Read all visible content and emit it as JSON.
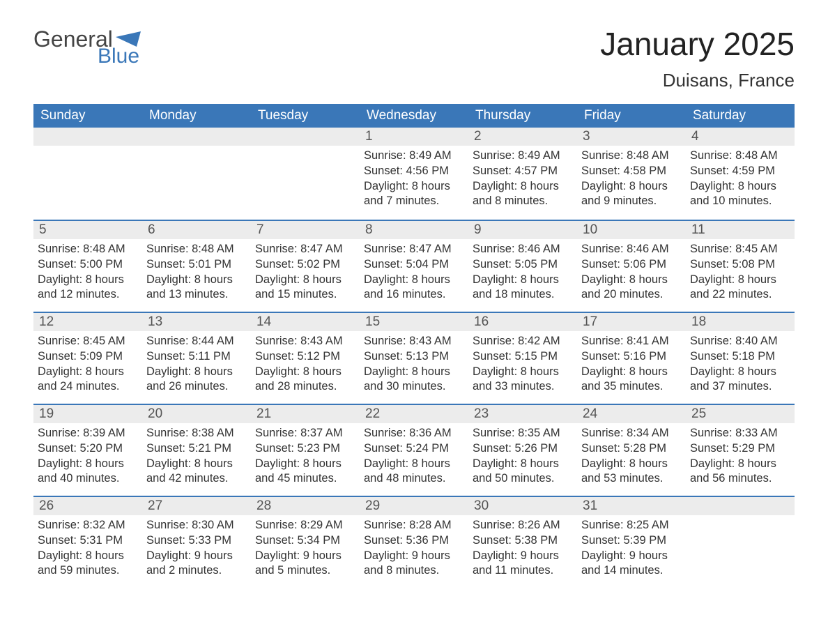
{
  "brand": {
    "general": "General",
    "blue": "Blue"
  },
  "title": "January 2025",
  "location": "Duisans, France",
  "colors": {
    "header_bg": "#3a77b8",
    "header_text": "#ffffff",
    "daynum_bg": "#ececec",
    "daynum_text": "#555555",
    "body_text": "#333333",
    "week_border": "#3a77b8",
    "logo_general": "#444444",
    "logo_blue": "#3a77b8",
    "page_bg": "#ffffff"
  },
  "typography": {
    "title_fontsize": 46,
    "location_fontsize": 26,
    "dayheader_fontsize": 19,
    "cell_fontsize": 16.5,
    "font_family": "Arial"
  },
  "day_headers": [
    "Sunday",
    "Monday",
    "Tuesday",
    "Wednesday",
    "Thursday",
    "Friday",
    "Saturday"
  ],
  "weeks": [
    [
      null,
      null,
      null,
      {
        "n": "1",
        "sunrise": "Sunrise: 8:49 AM",
        "sunset": "Sunset: 4:56 PM",
        "d1": "Daylight: 8 hours",
        "d2": "and 7 minutes."
      },
      {
        "n": "2",
        "sunrise": "Sunrise: 8:49 AM",
        "sunset": "Sunset: 4:57 PM",
        "d1": "Daylight: 8 hours",
        "d2": "and 8 minutes."
      },
      {
        "n": "3",
        "sunrise": "Sunrise: 8:48 AM",
        "sunset": "Sunset: 4:58 PM",
        "d1": "Daylight: 8 hours",
        "d2": "and 9 minutes."
      },
      {
        "n": "4",
        "sunrise": "Sunrise: 8:48 AM",
        "sunset": "Sunset: 4:59 PM",
        "d1": "Daylight: 8 hours",
        "d2": "and 10 minutes."
      }
    ],
    [
      {
        "n": "5",
        "sunrise": "Sunrise: 8:48 AM",
        "sunset": "Sunset: 5:00 PM",
        "d1": "Daylight: 8 hours",
        "d2": "and 12 minutes."
      },
      {
        "n": "6",
        "sunrise": "Sunrise: 8:48 AM",
        "sunset": "Sunset: 5:01 PM",
        "d1": "Daylight: 8 hours",
        "d2": "and 13 minutes."
      },
      {
        "n": "7",
        "sunrise": "Sunrise: 8:47 AM",
        "sunset": "Sunset: 5:02 PM",
        "d1": "Daylight: 8 hours",
        "d2": "and 15 minutes."
      },
      {
        "n": "8",
        "sunrise": "Sunrise: 8:47 AM",
        "sunset": "Sunset: 5:04 PM",
        "d1": "Daylight: 8 hours",
        "d2": "and 16 minutes."
      },
      {
        "n": "9",
        "sunrise": "Sunrise: 8:46 AM",
        "sunset": "Sunset: 5:05 PM",
        "d1": "Daylight: 8 hours",
        "d2": "and 18 minutes."
      },
      {
        "n": "10",
        "sunrise": "Sunrise: 8:46 AM",
        "sunset": "Sunset: 5:06 PM",
        "d1": "Daylight: 8 hours",
        "d2": "and 20 minutes."
      },
      {
        "n": "11",
        "sunrise": "Sunrise: 8:45 AM",
        "sunset": "Sunset: 5:08 PM",
        "d1": "Daylight: 8 hours",
        "d2": "and 22 minutes."
      }
    ],
    [
      {
        "n": "12",
        "sunrise": "Sunrise: 8:45 AM",
        "sunset": "Sunset: 5:09 PM",
        "d1": "Daylight: 8 hours",
        "d2": "and 24 minutes."
      },
      {
        "n": "13",
        "sunrise": "Sunrise: 8:44 AM",
        "sunset": "Sunset: 5:11 PM",
        "d1": "Daylight: 8 hours",
        "d2": "and 26 minutes."
      },
      {
        "n": "14",
        "sunrise": "Sunrise: 8:43 AM",
        "sunset": "Sunset: 5:12 PM",
        "d1": "Daylight: 8 hours",
        "d2": "and 28 minutes."
      },
      {
        "n": "15",
        "sunrise": "Sunrise: 8:43 AM",
        "sunset": "Sunset: 5:13 PM",
        "d1": "Daylight: 8 hours",
        "d2": "and 30 minutes."
      },
      {
        "n": "16",
        "sunrise": "Sunrise: 8:42 AM",
        "sunset": "Sunset: 5:15 PM",
        "d1": "Daylight: 8 hours",
        "d2": "and 33 minutes."
      },
      {
        "n": "17",
        "sunrise": "Sunrise: 8:41 AM",
        "sunset": "Sunset: 5:16 PM",
        "d1": "Daylight: 8 hours",
        "d2": "and 35 minutes."
      },
      {
        "n": "18",
        "sunrise": "Sunrise: 8:40 AM",
        "sunset": "Sunset: 5:18 PM",
        "d1": "Daylight: 8 hours",
        "d2": "and 37 minutes."
      }
    ],
    [
      {
        "n": "19",
        "sunrise": "Sunrise: 8:39 AM",
        "sunset": "Sunset: 5:20 PM",
        "d1": "Daylight: 8 hours",
        "d2": "and 40 minutes."
      },
      {
        "n": "20",
        "sunrise": "Sunrise: 8:38 AM",
        "sunset": "Sunset: 5:21 PM",
        "d1": "Daylight: 8 hours",
        "d2": "and 42 minutes."
      },
      {
        "n": "21",
        "sunrise": "Sunrise: 8:37 AM",
        "sunset": "Sunset: 5:23 PM",
        "d1": "Daylight: 8 hours",
        "d2": "and 45 minutes."
      },
      {
        "n": "22",
        "sunrise": "Sunrise: 8:36 AM",
        "sunset": "Sunset: 5:24 PM",
        "d1": "Daylight: 8 hours",
        "d2": "and 48 minutes."
      },
      {
        "n": "23",
        "sunrise": "Sunrise: 8:35 AM",
        "sunset": "Sunset: 5:26 PM",
        "d1": "Daylight: 8 hours",
        "d2": "and 50 minutes."
      },
      {
        "n": "24",
        "sunrise": "Sunrise: 8:34 AM",
        "sunset": "Sunset: 5:28 PM",
        "d1": "Daylight: 8 hours",
        "d2": "and 53 minutes."
      },
      {
        "n": "25",
        "sunrise": "Sunrise: 8:33 AM",
        "sunset": "Sunset: 5:29 PM",
        "d1": "Daylight: 8 hours",
        "d2": "and 56 minutes."
      }
    ],
    [
      {
        "n": "26",
        "sunrise": "Sunrise: 8:32 AM",
        "sunset": "Sunset: 5:31 PM",
        "d1": "Daylight: 8 hours",
        "d2": "and 59 minutes."
      },
      {
        "n": "27",
        "sunrise": "Sunrise: 8:30 AM",
        "sunset": "Sunset: 5:33 PM",
        "d1": "Daylight: 9 hours",
        "d2": "and 2 minutes."
      },
      {
        "n": "28",
        "sunrise": "Sunrise: 8:29 AM",
        "sunset": "Sunset: 5:34 PM",
        "d1": "Daylight: 9 hours",
        "d2": "and 5 minutes."
      },
      {
        "n": "29",
        "sunrise": "Sunrise: 8:28 AM",
        "sunset": "Sunset: 5:36 PM",
        "d1": "Daylight: 9 hours",
        "d2": "and 8 minutes."
      },
      {
        "n": "30",
        "sunrise": "Sunrise: 8:26 AM",
        "sunset": "Sunset: 5:38 PM",
        "d1": "Daylight: 9 hours",
        "d2": "and 11 minutes."
      },
      {
        "n": "31",
        "sunrise": "Sunrise: 8:25 AM",
        "sunset": "Sunset: 5:39 PM",
        "d1": "Daylight: 9 hours",
        "d2": "and 14 minutes."
      },
      null
    ]
  ]
}
